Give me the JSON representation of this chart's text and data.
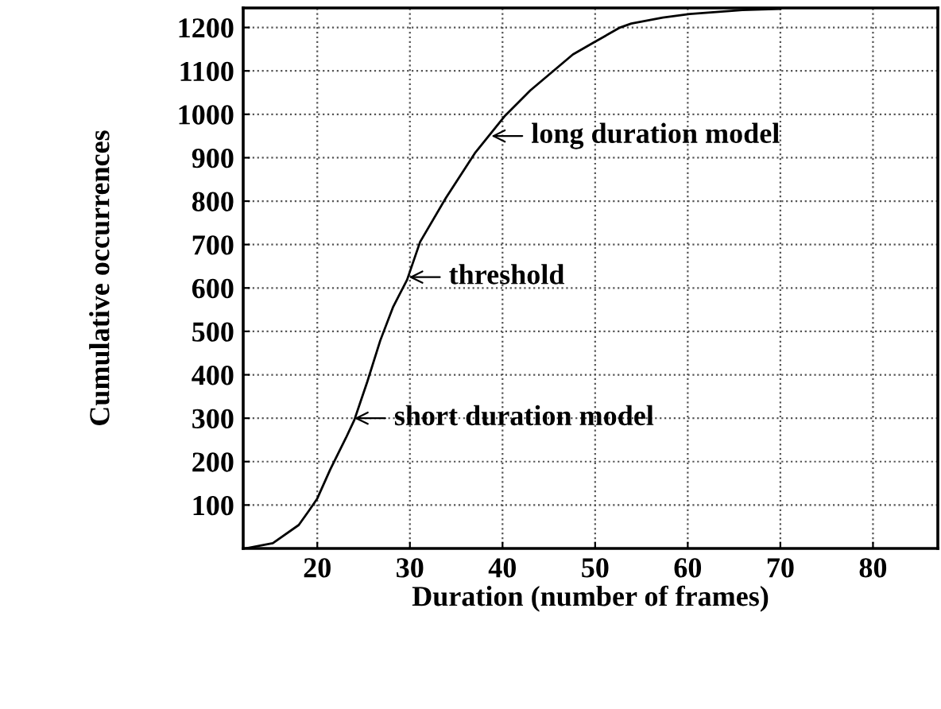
{
  "chart_data": {
    "type": "line",
    "xlabel": "Duration (number of frames)",
    "ylabel": "Cumulative occurrences",
    "x": [
      12.2,
      15.2,
      18,
      19.1,
      20,
      21.4,
      23.1,
      24,
      25.4,
      26.8,
      28.2,
      29.7,
      31.1,
      33.9,
      37,
      40.2,
      43,
      47.6,
      49.8,
      52.7,
      53.9,
      57.3,
      60.2,
      65.9,
      70
    ],
    "series": [
      {
        "color": "#000000",
        "values": [
          0,
          12,
          54,
          87,
          115,
          182,
          255,
          296,
          384,
          479,
          557,
          619,
          706,
          808,
          910,
          995,
          1055,
          1138,
          1165,
          1200,
          1209,
          1223,
          1231,
          1240,
          1243
        ]
      }
    ],
    "xlim": [
      12,
      87
    ],
    "ylim": [
      0,
      1245
    ],
    "xticks": [
      20,
      30,
      40,
      50,
      60,
      70,
      80
    ],
    "yticks": [
      100,
      200,
      300,
      400,
      500,
      600,
      700,
      800,
      900,
      1000,
      1100,
      1200
    ],
    "grid": true,
    "marker": "none",
    "line_style": "solid",
    "annotations": [
      {
        "text": "long duration model",
        "x": 38.8,
        "y": 950
      },
      {
        "text": "threshold",
        "x": 29.9,
        "y": 625
      },
      {
        "text": "short duration model",
        "x": 24,
        "y": 300
      }
    ]
  }
}
